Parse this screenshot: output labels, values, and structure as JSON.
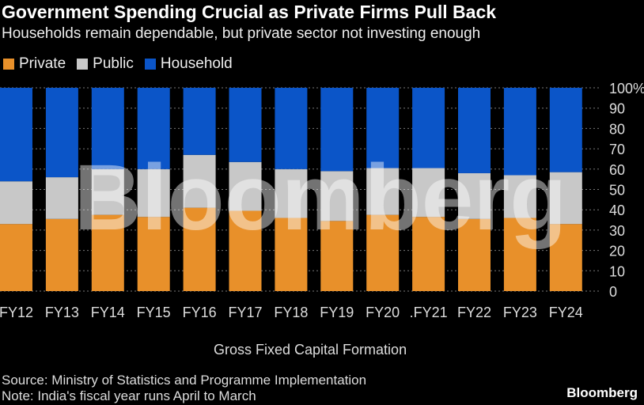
{
  "title": "Government Spending Crucial as Private Firms Pull Back",
  "subtitle": "Households remain dependable, but private sector not investing enough",
  "source": "Source: Ministry of Statistics and Programme Implementation",
  "note": "Note: India's fiscal year runs April to March",
  "brand": "Bloomberg",
  "watermark": "Bloomberg",
  "chart_data": {
    "type": "bar",
    "stacked": true,
    "xlabel": "Gross Fixed Capital Formation",
    "ylabel": "",
    "ylim": [
      0,
      100
    ],
    "yticks": [
      "0",
      "10",
      "20",
      "30",
      "40",
      "50",
      "60",
      "70",
      "80",
      "90",
      "100%"
    ],
    "grid": true,
    "legend": "top-left",
    "categories": [
      "FY12",
      "FY13",
      "FY14",
      "FY15",
      "FY16",
      "FY17",
      "FY18",
      "FY19",
      "FY20",
      ".FY21",
      "FY22",
      "FY23",
      "FY24"
    ],
    "series": [
      {
        "name": "Private",
        "color": "#e8902a",
        "values": [
          33,
          35.5,
          37.5,
          36.5,
          41,
          39.5,
          36,
          34.5,
          37.5,
          36.5,
          35.5,
          36,
          33
        ]
      },
      {
        "name": "Public",
        "color": "#c8c8c8",
        "values": [
          21,
          20.5,
          22.5,
          23.5,
          26,
          24,
          24,
          24.5,
          23,
          24,
          22.5,
          21,
          25.5
        ]
      },
      {
        "name": "Household",
        "color": "#0b55c8",
        "values": [
          46,
          44,
          40,
          40,
          33,
          36.5,
          40,
          41,
          39.5,
          39.5,
          42,
          43,
          41.5
        ]
      }
    ]
  }
}
